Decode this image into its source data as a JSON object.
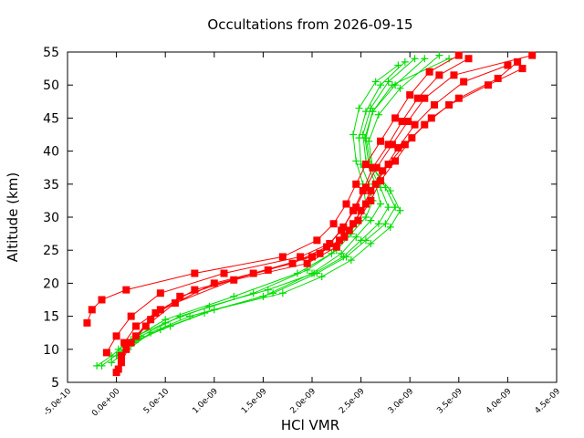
{
  "chart_data": {
    "type": "line",
    "title": "Occultations from 2026-09-15",
    "xlabel": "HCl VMR",
    "ylabel": "Altitude (km)",
    "xlim": [
      -5e-10,
      4.5e-09
    ],
    "ylim": [
      5,
      55
    ],
    "x_ticks": [
      "-5.0e-10",
      "0.0e+00",
      "5.0e-10",
      "1.0e-09",
      "1.5e-09",
      "2.0e-09",
      "2.5e-09",
      "3.0e-09",
      "3.5e-09",
      "4.0e-09",
      "4.5e-09"
    ],
    "y_ticks": [
      "5",
      "10",
      "15",
      "20",
      "25",
      "30",
      "35",
      "40",
      "45",
      "50",
      "55"
    ],
    "grid": false,
    "legend": "none",
    "colors": {
      "green_series": "#00dd00",
      "red_series": "#ff0000"
    },
    "series": [
      {
        "color": "#00dd00",
        "marker": "plus",
        "x": [
          -1.5e-10,
          3e-11,
          2.5e-10,
          6.5e-10,
          1.4e-09,
          1.95e-09,
          2.25e-09,
          2.4e-09,
          2.55e-09,
          2.62e-09,
          2.58e-09,
          2.5e-09,
          2.48e-09,
          2.55e-09,
          2.7e-09,
          2.95e-09
        ],
        "y": [
          7.5,
          9.5,
          12.0,
          15.0,
          18.5,
          22.0,
          25.0,
          27.5,
          30.0,
          32.5,
          35.0,
          38.0,
          42.0,
          46.0,
          50.0,
          53.5
        ]
      },
      {
        "color": "#00dd00",
        "marker": "plus",
        "x": [
          -5e-11,
          1.2e-10,
          3.5e-10,
          7.5e-10,
          1.5e-09,
          2e-09,
          2.3e-09,
          2.45e-09,
          2.6e-09,
          2.7e-09,
          2.65e-09,
          2.55e-09,
          2.52e-09,
          2.6e-09,
          2.78e-09,
          3.05e-09
        ],
        "y": [
          8.0,
          10.0,
          12.5,
          15.0,
          18.0,
          21.5,
          24.5,
          27.0,
          29.5,
          32.0,
          35.0,
          38.5,
          42.5,
          46.5,
          50.5,
          54.0
        ]
      },
      {
        "color": "#00dd00",
        "marker": "plus",
        "x": [
          0.0,
          1.8e-10,
          4.5e-10,
          9e-10,
          1.6e-09,
          2.05e-09,
          2.35e-09,
          2.55e-09,
          2.75e-09,
          2.85e-09,
          2.75e-09,
          2.6e-09,
          2.55e-09,
          2.62e-09,
          2.85e-09,
          3.15e-09
        ],
        "y": [
          9.0,
          11.0,
          13.0,
          15.5,
          18.5,
          21.5,
          24.0,
          26.5,
          29.0,
          31.5,
          34.5,
          38.0,
          42.0,
          46.0,
          50.0,
          54.0
        ]
      },
      {
        "color": "#00dd00",
        "marker": "plus",
        "x": [
          5e-11,
          2.2e-10,
          5.5e-10,
          1e-09,
          1.7e-09,
          2.1e-09,
          2.4e-09,
          2.6e-09,
          2.8e-09,
          2.9e-09,
          2.8e-09,
          2.62e-09,
          2.58e-09,
          2.68e-09,
          2.9e-09,
          3.3e-09
        ],
        "y": [
          9.5,
          11.5,
          13.5,
          16.0,
          18.5,
          21.0,
          23.5,
          26.0,
          28.5,
          31.0,
          34.0,
          37.5,
          41.5,
          45.5,
          49.5,
          54.5
        ]
      },
      {
        "color": "#00dd00",
        "marker": "plus",
        "x": [
          -2e-10,
          -5e-11,
          1.5e-10,
          5e-10,
          1.2e-09,
          1.85e-09,
          2.2e-09,
          2.35e-09,
          2.48e-09,
          2.55e-09,
          2.52e-09,
          2.45e-09,
          2.42e-09,
          2.48e-09,
          2.65e-09,
          2.88e-09
        ],
        "y": [
          7.5,
          9.0,
          11.5,
          14.5,
          18.0,
          21.5,
          24.5,
          27.0,
          29.5,
          32.0,
          35.0,
          38.5,
          42.5,
          46.5,
          50.5,
          53.0
        ]
      },
      {
        "color": "#00dd00",
        "marker": "plus",
        "x": [
          2e-11,
          2e-10,
          5e-10,
          9.5e-10,
          1.55e-09,
          2.02e-09,
          2.32e-09,
          2.5e-09,
          2.68e-09,
          2.78e-09,
          2.7e-09,
          2.58e-09,
          2.54e-09,
          2.62e-09,
          2.82e-09,
          3.4e-09
        ],
        "y": [
          10.0,
          12.0,
          14.0,
          16.5,
          19.0,
          21.5,
          24.0,
          26.5,
          29.0,
          31.5,
          34.5,
          38.0,
          42.0,
          46.0,
          50.0,
          54.0
        ]
      },
      {
        "color": "#ff0000",
        "marker": "square",
        "x": [
          0.0,
          5e-11,
          2e-10,
          4e-10,
          1e-09,
          1.8e-09,
          2.15e-09,
          2.3e-09,
          2.42e-09,
          2.52e-09,
          2.62e-09,
          2.78e-09,
          2.92e-09,
          3.08e-09,
          3.3e-09,
          3.6e-09
        ],
        "y": [
          6.5,
          9.0,
          12.0,
          15.5,
          20.0,
          23.0,
          25.5,
          28.0,
          31.0,
          34.0,
          37.5,
          41.0,
          44.5,
          48.0,
          51.5,
          54.0
        ]
      },
      {
        "color": "#ff0000",
        "marker": "square",
        "x": [
          -3e-10,
          -2.5e-10,
          -1.5e-10,
          1e-10,
          8e-10,
          1.7e-09,
          2.05e-09,
          2.22e-09,
          2.35e-09,
          2.45e-09,
          2.55e-09,
          2.7e-09,
          2.85e-09,
          3e-09,
          3.2e-09,
          3.5e-09
        ],
        "y": [
          14.0,
          16.0,
          17.5,
          19.0,
          21.5,
          24.0,
          26.5,
          29.0,
          32.0,
          35.0,
          38.0,
          41.5,
          45.0,
          48.5,
          52.0,
          54.5
        ]
      },
      {
        "color": "#ff0000",
        "marker": "square",
        "x": [
          2e-11,
          1e-10,
          3e-10,
          6e-10,
          1.2e-09,
          1.95e-09,
          2.25e-09,
          2.38e-09,
          2.5e-09,
          2.6e-09,
          2.72e-09,
          2.88e-09,
          3.05e-09,
          3.25e-09,
          3.55e-09,
          4e-09
        ],
        "y": [
          7.0,
          10.0,
          13.5,
          17.0,
          20.5,
          23.0,
          25.5,
          28.0,
          31.0,
          34.0,
          37.0,
          40.5,
          44.0,
          47.0,
          50.5,
          53.0
        ]
      },
      {
        "color": "#ff0000",
        "marker": "square",
        "x": [
          5e-11,
          1.5e-10,
          3.5e-10,
          6.5e-10,
          1.4e-09,
          2e-09,
          2.28e-09,
          2.42e-09,
          2.55e-09,
          2.65e-09,
          2.78e-09,
          2.95e-09,
          3.15e-09,
          3.4e-09,
          3.8e-09,
          4.15e-09
        ],
        "y": [
          8.0,
          11.0,
          14.5,
          18.0,
          21.5,
          24.0,
          26.5,
          29.0,
          32.0,
          35.0,
          38.0,
          41.0,
          44.0,
          47.0,
          50.0,
          52.5
        ]
      },
      {
        "color": "#ff0000",
        "marker": "square",
        "x": [
          -1e-10,
          0.0,
          1.5e-10,
          4.5e-10,
          1.1e-09,
          1.88e-09,
          2.18e-09,
          2.32e-09,
          2.45e-09,
          2.55e-09,
          2.66e-09,
          2.82e-09,
          2.98e-09,
          3.15e-09,
          3.45e-09,
          4.25e-09
        ],
        "y": [
          9.5,
          12.0,
          15.0,
          18.5,
          21.5,
          24.0,
          26.0,
          28.5,
          31.5,
          34.5,
          37.5,
          41.0,
          44.5,
          48.0,
          51.5,
          54.5
        ]
      },
      {
        "color": "#ff0000",
        "marker": "square",
        "x": [
          8e-11,
          2e-10,
          4.5e-10,
          8e-10,
          1.55e-09,
          2.08e-09,
          2.33e-09,
          2.47e-09,
          2.6e-09,
          2.7e-09,
          2.85e-09,
          3.02e-09,
          3.22e-09,
          3.5e-09,
          3.9e-09,
          4.1e-09
        ],
        "y": [
          11.0,
          13.5,
          16.0,
          19.0,
          22.0,
          24.5,
          27.0,
          29.5,
          32.5,
          35.5,
          38.5,
          42.0,
          45.0,
          48.0,
          51.0,
          53.5
        ]
      }
    ]
  }
}
